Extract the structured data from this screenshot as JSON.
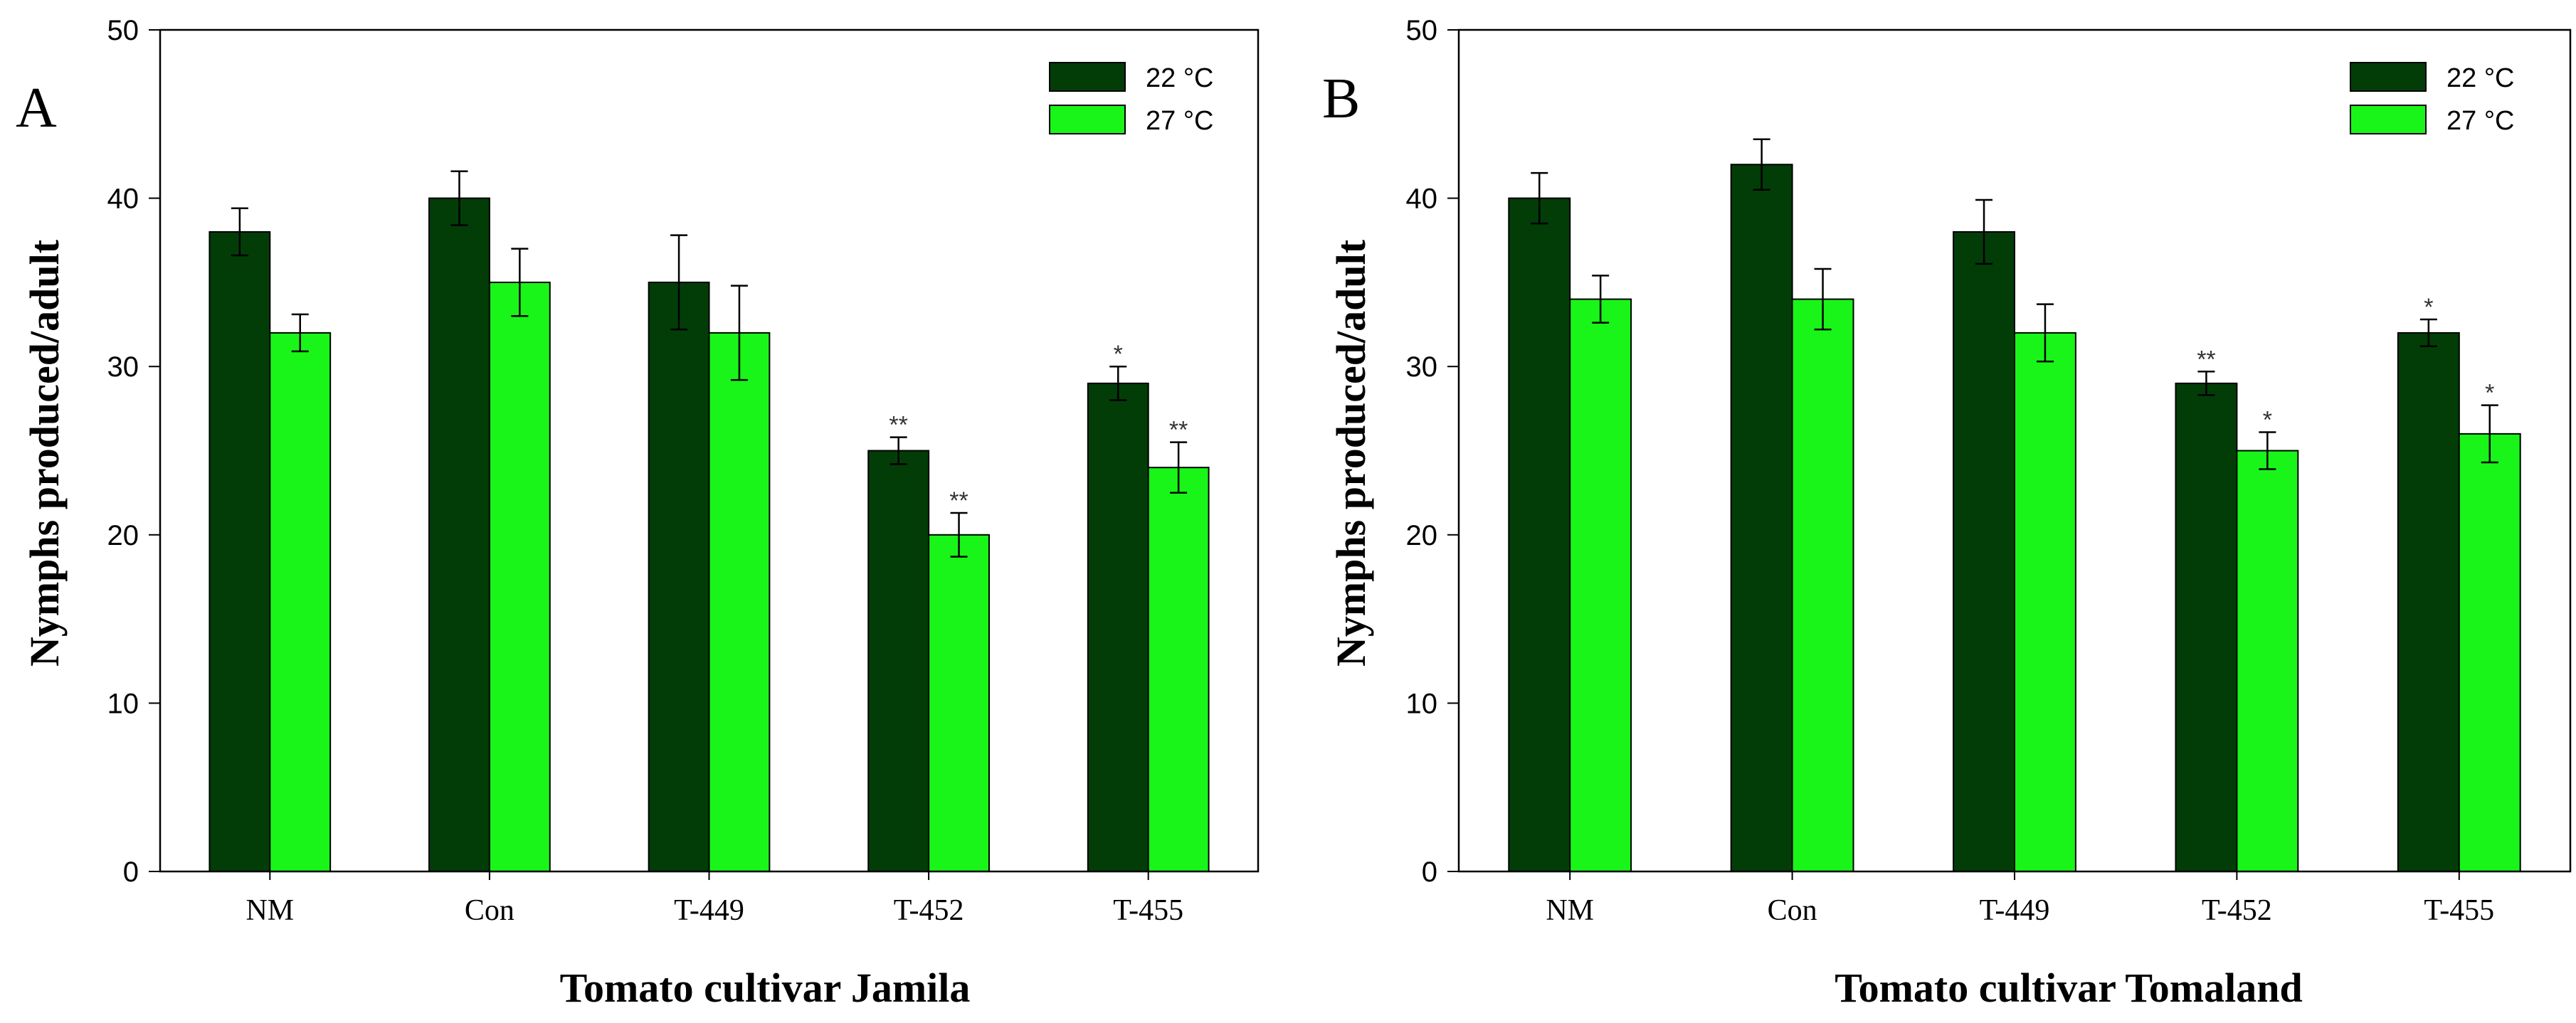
{
  "colors": {
    "series_22": "#023d08",
    "series_27": "#19f519",
    "axis": "#000000"
  },
  "chart_data": [
    {
      "panel": "A",
      "type": "bar",
      "categories": [
        "NM",
        "Con",
        "T-449",
        "T-452",
        "T-455"
      ],
      "xlabel": "Tomato cultivar Jamila",
      "ylabel": "Nymphs produced/adult",
      "ylim": [
        0,
        50
      ],
      "yticks": [
        0,
        10,
        20,
        30,
        40,
        50
      ],
      "legend_position": "top-right",
      "series": [
        {
          "name": "22 °C",
          "values": [
            38,
            40,
            35,
            25,
            29
          ],
          "errors": [
            1.4,
            1.6,
            2.8,
            0.8,
            1.0
          ],
          "significance": [
            "",
            "",
            "",
            "**",
            "*"
          ]
        },
        {
          "name": "27 °C",
          "values": [
            32,
            35,
            32,
            20,
            24
          ],
          "errors": [
            1.1,
            2.0,
            2.8,
            1.3,
            1.5
          ],
          "significance": [
            "",
            "",
            "",
            "**",
            "**"
          ]
        }
      ]
    },
    {
      "panel": "B",
      "type": "bar",
      "categories": [
        "NM",
        "Con",
        "T-449",
        "T-452",
        "T-455"
      ],
      "xlabel": "Tomato cultivar Tomaland",
      "ylabel": "Nymphs produced/adult",
      "ylim": [
        0,
        50
      ],
      "yticks": [
        0,
        10,
        20,
        30,
        40,
        50
      ],
      "legend_position": "top-right",
      "series": [
        {
          "name": "22 °C",
          "values": [
            40,
            42,
            38,
            29,
            32
          ],
          "errors": [
            1.5,
            1.5,
            1.9,
            0.7,
            0.8
          ],
          "significance": [
            "",
            "",
            "",
            "**",
            "*"
          ]
        },
        {
          "name": "27 °C",
          "values": [
            34,
            34,
            32,
            25,
            26
          ],
          "errors": [
            1.4,
            1.8,
            1.7,
            1.1,
            1.7
          ],
          "significance": [
            "",
            "",
            "",
            "*",
            "*"
          ]
        }
      ]
    }
  ]
}
